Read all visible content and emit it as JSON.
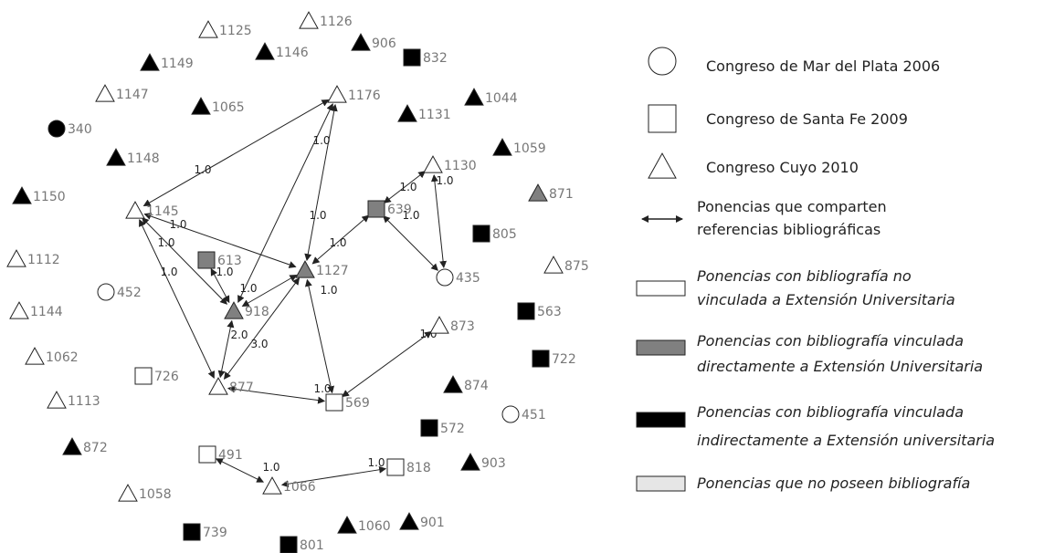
{
  "colors": {
    "white": "#ffffff",
    "gray": "#808080",
    "black": "#000000",
    "light": "#e6e6e6",
    "stroke": "#222222",
    "label": "#777777"
  },
  "nodes": [
    {
      "id": "1125",
      "shape": "triangle",
      "fill": "white"
    },
    {
      "id": "1126",
      "shape": "triangle",
      "fill": "white"
    },
    {
      "id": "1146",
      "shape": "triangle",
      "fill": "black"
    },
    {
      "id": "906",
      "shape": "triangle",
      "fill": "black"
    },
    {
      "id": "832",
      "shape": "square",
      "fill": "black"
    },
    {
      "id": "1149",
      "shape": "triangle",
      "fill": "black"
    },
    {
      "id": "1147",
      "shape": "triangle",
      "fill": "white"
    },
    {
      "id": "1065",
      "shape": "triangle",
      "fill": "black"
    },
    {
      "id": "1176",
      "shape": "triangle",
      "fill": "white"
    },
    {
      "id": "1044",
      "shape": "triangle",
      "fill": "black"
    },
    {
      "id": "1131",
      "shape": "triangle",
      "fill": "black"
    },
    {
      "id": "340",
      "shape": "circle",
      "fill": "black"
    },
    {
      "id": "1059",
      "shape": "triangle",
      "fill": "black"
    },
    {
      "id": "1148",
      "shape": "triangle",
      "fill": "black"
    },
    {
      "id": "1130",
      "shape": "triangle",
      "fill": "white"
    },
    {
      "id": "1150",
      "shape": "triangle",
      "fill": "black"
    },
    {
      "id": "871",
      "shape": "triangle",
      "fill": "gray"
    },
    {
      "id": "639",
      "shape": "square",
      "fill": "gray"
    },
    {
      "id": "1145",
      "shape": "triangle",
      "fill": "white"
    },
    {
      "id": "805",
      "shape": "square",
      "fill": "black"
    },
    {
      "id": "1112",
      "shape": "triangle",
      "fill": "white"
    },
    {
      "id": "613",
      "shape": "square",
      "fill": "gray"
    },
    {
      "id": "1127",
      "shape": "triangle",
      "fill": "gray"
    },
    {
      "id": "875",
      "shape": "triangle",
      "fill": "white"
    },
    {
      "id": "435",
      "shape": "circle",
      "fill": "white"
    },
    {
      "id": "452",
      "shape": "circle",
      "fill": "white"
    },
    {
      "id": "918",
      "shape": "triangle",
      "fill": "gray"
    },
    {
      "id": "1144",
      "shape": "triangle",
      "fill": "white"
    },
    {
      "id": "563",
      "shape": "square",
      "fill": "black"
    },
    {
      "id": "873",
      "shape": "triangle",
      "fill": "white"
    },
    {
      "id": "1062",
      "shape": "triangle",
      "fill": "white"
    },
    {
      "id": "722",
      "shape": "square",
      "fill": "black"
    },
    {
      "id": "726",
      "shape": "square",
      "fill": "white"
    },
    {
      "id": "877",
      "shape": "triangle",
      "fill": "white"
    },
    {
      "id": "874",
      "shape": "triangle",
      "fill": "black"
    },
    {
      "id": "1113",
      "shape": "triangle",
      "fill": "white"
    },
    {
      "id": "569",
      "shape": "square",
      "fill": "white"
    },
    {
      "id": "451",
      "shape": "circle",
      "fill": "white"
    },
    {
      "id": "572",
      "shape": "square",
      "fill": "black"
    },
    {
      "id": "872",
      "shape": "triangle",
      "fill": "black"
    },
    {
      "id": "491",
      "shape": "square",
      "fill": "white"
    },
    {
      "id": "903",
      "shape": "triangle",
      "fill": "black"
    },
    {
      "id": "818",
      "shape": "square",
      "fill": "white"
    },
    {
      "id": "1066",
      "shape": "triangle",
      "fill": "white"
    },
    {
      "id": "1058",
      "shape": "triangle",
      "fill": "white"
    },
    {
      "id": "739",
      "shape": "square",
      "fill": "black"
    },
    {
      "id": "1060",
      "shape": "triangle",
      "fill": "black"
    },
    {
      "id": "901",
      "shape": "triangle",
      "fill": "black"
    },
    {
      "id": "801",
      "shape": "square",
      "fill": "black"
    }
  ],
  "edges": [
    {
      "from": "1145",
      "to": "1176",
      "label": "1.0"
    },
    {
      "from": "918",
      "to": "1176",
      "label": "1.0"
    },
    {
      "from": "1127",
      "to": "1176",
      "label": "1.0"
    },
    {
      "from": "1145",
      "to": "918",
      "label": "1.0"
    },
    {
      "from": "1145",
      "to": "1127",
      "label": "1.0"
    },
    {
      "from": "1145",
      "to": "877",
      "label": "1.0"
    },
    {
      "from": "613",
      "to": "918",
      "label": "1.0"
    },
    {
      "from": "918",
      "to": "1127",
      "label": "1.0"
    },
    {
      "from": "918",
      "to": "877",
      "label": "2.0"
    },
    {
      "from": "877",
      "to": "1127",
      "label": "3.0"
    },
    {
      "from": "1127",
      "to": "569",
      "label": "1.0"
    },
    {
      "from": "1127",
      "to": "639",
      "label": "1.0"
    },
    {
      "from": "877",
      "to": "569",
      "label": "1.0"
    },
    {
      "from": "639",
      "to": "1130",
      "label": "1.0"
    },
    {
      "from": "639",
      "to": "435",
      "label": "1.0"
    },
    {
      "from": "1130",
      "to": "435",
      "label": "1.0"
    },
    {
      "from": "569",
      "to": "873",
      "label": "1.0"
    },
    {
      "from": "491",
      "to": "1066",
      "label": "1.0"
    },
    {
      "from": "1066",
      "to": "818",
      "label": "1.0"
    }
  ],
  "legend": [
    {
      "symbol": "circle",
      "text": "Congreso de Mar del Plata 2006",
      "italic": false
    },
    {
      "symbol": "square",
      "text": "Congreso de Santa Fe 2009",
      "italic": false
    },
    {
      "symbol": "triangle",
      "text": "Congreso Cuyo 2010",
      "italic": false
    },
    {
      "symbol": "arrow",
      "lines": [
        "Ponencias que comparten",
        "referencias bibliográficas"
      ],
      "italic": false
    },
    {
      "symbol": "rect-white",
      "lines": [
        "Ponencias con  bibliografía no",
        "vinculada a Extensión Universitaria"
      ],
      "italic": true
    },
    {
      "symbol": "rect-gray",
      "lines": [
        "Ponencias con bibliografía vinculada",
        "directamente a Extensión Universitaria"
      ],
      "italic": true
    },
    {
      "symbol": "rect-black",
      "lines": [
        "Ponencias con bibliografía vinculada",
        "indirectamente a Extensión universitaria"
      ],
      "italic": true
    },
    {
      "symbol": "rect-light",
      "text": "Ponencias que no poseen bibliografía",
      "italic": true
    }
  ]
}
